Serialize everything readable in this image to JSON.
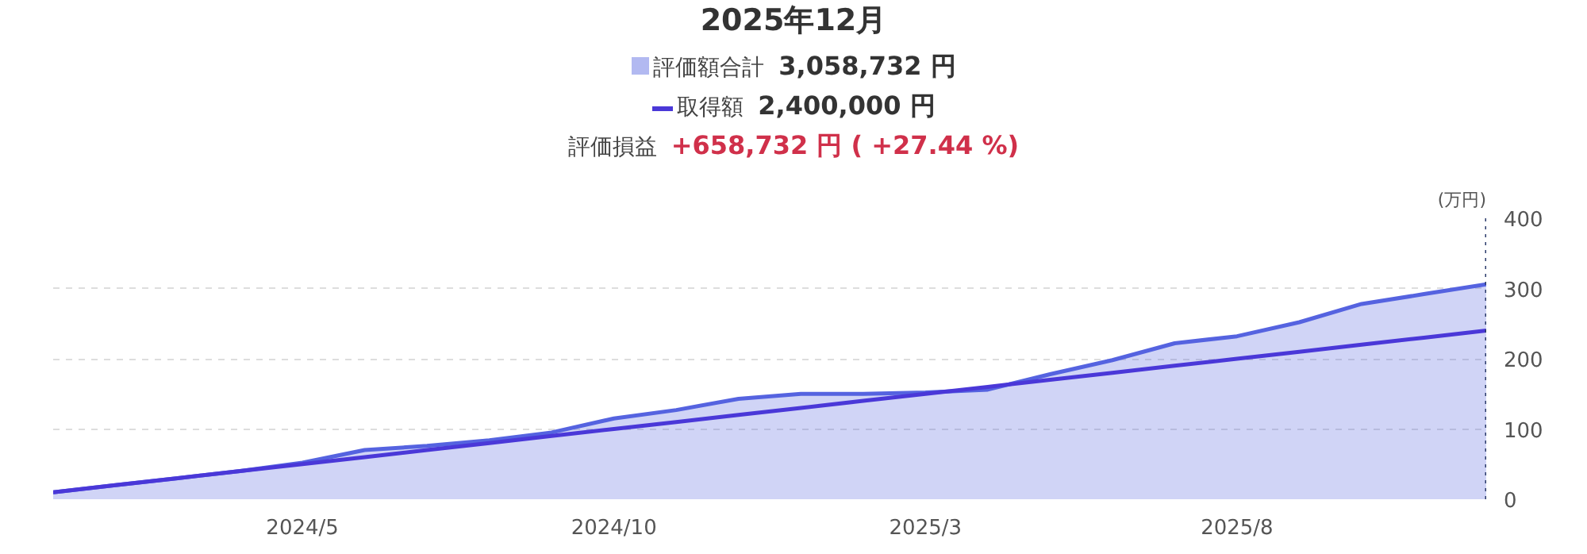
{
  "chart_data": {
    "type": "area",
    "title": "2025年12月",
    "ylabel": "(万円)",
    "x": [
      "2024-01",
      "2024-02",
      "2024-03",
      "2024-04",
      "2024-05",
      "2024-06",
      "2024-07",
      "2024-08",
      "2024-09",
      "2024-10",
      "2024-11",
      "2024-12",
      "2025-01",
      "2025-02",
      "2025-03",
      "2025-04",
      "2025-05",
      "2025-06",
      "2025-07",
      "2025-08",
      "2025-09",
      "2025-10",
      "2025-11",
      "2025-12"
    ],
    "series": [
      {
        "name": "評価額合計",
        "color": "#5563e0",
        "values": [
          10,
          20,
          30,
          40,
          52,
          70,
          76,
          84,
          95,
          115,
          127,
          143,
          150,
          150,
          152,
          156,
          178,
          198,
          222,
          232,
          252,
          278,
          292,
          306
        ]
      },
      {
        "name": "取得額",
        "type": "line",
        "color": "#4a38d8",
        "values": [
          10,
          20,
          30,
          40,
          50,
          60,
          70,
          80,
          90,
          100,
          110,
          120,
          130,
          140,
          150,
          160,
          170,
          180,
          190,
          200,
          210,
          220,
          230,
          240
        ]
      }
    ],
    "xlim": [
      "2024-01",
      "2025-12"
    ],
    "xticks": [
      {
        "value": "2024-05",
        "label": "2024/5"
      },
      {
        "value": "2024-10",
        "label": "2024/10"
      },
      {
        "value": "2025-03",
        "label": "2025/3"
      },
      {
        "value": "2025-08",
        "label": "2025/8"
      }
    ],
    "ylim": [
      0,
      400
    ],
    "yticks": [
      0,
      100,
      200,
      300,
      400
    ],
    "grid": "y",
    "legend": "top",
    "marker": "none",
    "line_style": "solid",
    "ref_lines": [
      {
        "axis": "x",
        "value": "2025-12",
        "color": "#2a3a6a",
        "line_style": "dotted"
      }
    ],
    "annotations": [
      "3,058,732 円",
      "2,400,000 円",
      "評価損益",
      "+658,732 円 ( +27.44 %)"
    ]
  }
}
